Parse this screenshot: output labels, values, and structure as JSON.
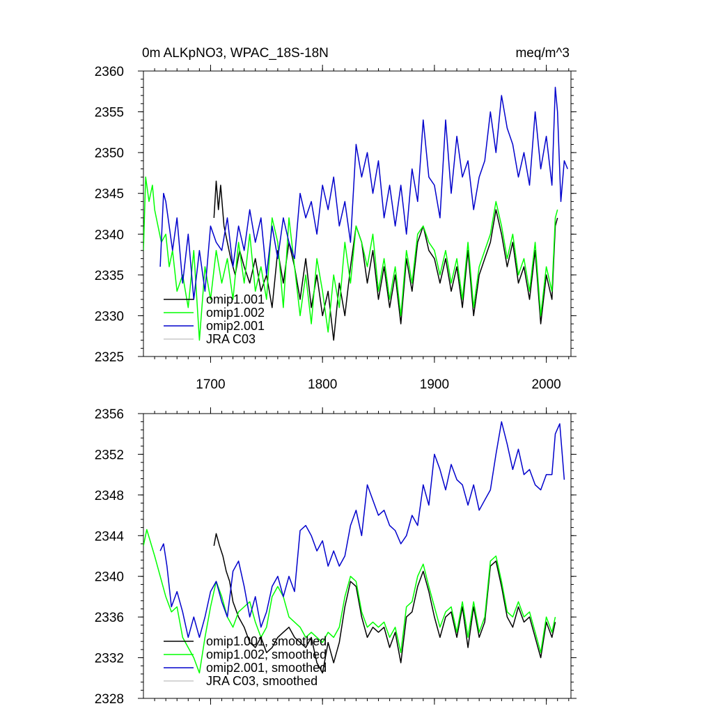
{
  "chart_data": [
    {
      "type": "line",
      "title": "0m ALKpNO3, WPAC_18S-18N",
      "units": "meq/m^3",
      "xlim": [
        1640,
        2022
      ],
      "ylim": [
        2325,
        2360
      ],
      "xticks": [
        1700,
        1800,
        1900,
        2000
      ],
      "xtick_labels": [
        "1700",
        "1800",
        "1900",
        "2000"
      ],
      "yticks": [
        2325,
        2330,
        2335,
        2340,
        2345,
        2350,
        2355,
        2360
      ],
      "ytick_labels": [
        "2325",
        "2330",
        "2335",
        "2340",
        "2345",
        "2350",
        "2355",
        "2360"
      ],
      "legend": {
        "placement": "lower-left",
        "entries": [
          "omip1.001",
          "omip1.002",
          "omip2.001",
          "JRA C03"
        ]
      },
      "series": [
        {
          "name": "omip1.001",
          "color": "#000000",
          "x": [
            1703,
            1705,
            1707,
            1709,
            1712,
            1715,
            1718,
            1722,
            1726,
            1730,
            1735,
            1740,
            1745,
            1750,
            1755,
            1760,
            1765,
            1770,
            1775,
            1780,
            1785,
            1790,
            1795,
            1800,
            1805,
            1810,
            1815,
            1820,
            1825,
            1830,
            1835,
            1840,
            1845,
            1850,
            1855,
            1860,
            1865,
            1870,
            1875,
            1880,
            1885,
            1890,
            1895,
            1900,
            1905,
            1910,
            1915,
            1920,
            1925,
            1930,
            1935,
            1940,
            1945,
            1950,
            1955,
            1960,
            1965,
            1970,
            1975,
            1980,
            1985,
            1990,
            1995,
            2000,
            2005,
            2008,
            2010
          ],
          "values": [
            2342,
            2346.5,
            2343,
            2346,
            2341,
            2339,
            2337,
            2335,
            2338,
            2336,
            2334,
            2337,
            2333,
            2335,
            2331,
            2338,
            2334,
            2339,
            2336,
            2332,
            2337,
            2331,
            2335,
            2330,
            2333,
            2327,
            2334,
            2330,
            2336,
            2341,
            2339,
            2334,
            2338,
            2332,
            2336,
            2331,
            2335,
            2329,
            2337,
            2333,
            2339,
            2341,
            2338,
            2337,
            2334,
            2337,
            2333,
            2336,
            2331,
            2338,
            2330,
            2335,
            2337,
            2339,
            2343,
            2340,
            2336,
            2339,
            2334,
            2336,
            2332,
            2338,
            2329,
            2335,
            2332,
            2341,
            2342
          ]
        },
        {
          "name": "omip1.002",
          "color": "#00ff00",
          "x": [
            1640,
            1642,
            1645,
            1648,
            1650,
            1653,
            1656,
            1660,
            1663,
            1666,
            1670,
            1675,
            1680,
            1685,
            1690,
            1695,
            1700,
            1705,
            1710,
            1715,
            1720,
            1725,
            1730,
            1735,
            1740,
            1745,
            1750,
            1755,
            1760,
            1765,
            1770,
            1775,
            1780,
            1785,
            1790,
            1795,
            1800,
            1805,
            1810,
            1815,
            1820,
            1825,
            1830,
            1835,
            1840,
            1845,
            1850,
            1855,
            1860,
            1865,
            1870,
            1875,
            1880,
            1885,
            1890,
            1895,
            1900,
            1905,
            1910,
            1915,
            1920,
            1925,
            1930,
            1935,
            1940,
            1945,
            1950,
            1955,
            1960,
            1965,
            1970,
            1975,
            1980,
            1985,
            1990,
            1995,
            2000,
            2005,
            2008,
            2010
          ],
          "values": [
            2338,
            2347,
            2344,
            2346,
            2343,
            2341,
            2339,
            2340,
            2336,
            2338,
            2333,
            2335,
            2331,
            2338,
            2327,
            2336,
            2332,
            2338,
            2334,
            2337,
            2332,
            2339,
            2334,
            2340,
            2333,
            2336,
            2332,
            2342,
            2339,
            2331,
            2342,
            2336,
            2330,
            2335,
            2329,
            2337,
            2333,
            2328,
            2335,
            2331,
            2339,
            2334,
            2341,
            2339,
            2336,
            2340,
            2333,
            2337,
            2332,
            2336,
            2330,
            2338,
            2334,
            2340,
            2341,
            2339,
            2338,
            2335,
            2338,
            2334,
            2337,
            2332,
            2339,
            2331,
            2336,
            2338,
            2340,
            2344,
            2341,
            2337,
            2340,
            2335,
            2337,
            2333,
            2339,
            2330,
            2336,
            2333,
            2342,
            2343
          ]
        },
        {
          "name": "omip2.001",
          "color": "#0000cc",
          "x": [
            1655,
            1658,
            1660,
            1663,
            1666,
            1670,
            1675,
            1680,
            1685,
            1690,
            1695,
            1700,
            1705,
            1710,
            1715,
            1720,
            1725,
            1730,
            1735,
            1740,
            1745,
            1750,
            1755,
            1760,
            1765,
            1770,
            1775,
            1780,
            1785,
            1790,
            1795,
            1800,
            1805,
            1810,
            1815,
            1820,
            1825,
            1830,
            1835,
            1840,
            1845,
            1850,
            1855,
            1860,
            1865,
            1870,
            1875,
            1880,
            1885,
            1890,
            1895,
            1900,
            1905,
            1910,
            1915,
            1920,
            1925,
            1930,
            1935,
            1940,
            1945,
            1950,
            1955,
            1960,
            1965,
            1970,
            1975,
            1980,
            1985,
            1990,
            1995,
            2000,
            2005,
            2008,
            2010,
            2013,
            2016,
            2019
          ],
          "values": [
            2336,
            2345,
            2344,
            2341,
            2338,
            2342,
            2334,
            2340,
            2332,
            2338,
            2333,
            2341,
            2339,
            2338,
            2342,
            2336,
            2341,
            2338,
            2343,
            2339,
            2342,
            2335,
            2341,
            2337,
            2342,
            2339,
            2337,
            2345,
            2342,
            2344,
            2340,
            2346,
            2343,
            2347,
            2341,
            2344,
            2339,
            2351,
            2347,
            2350,
            2345,
            2349,
            2342,
            2346,
            2341,
            2346,
            2340,
            2348,
            2344,
            2354,
            2347,
            2346,
            2342,
            2354,
            2345,
            2352,
            2347,
            2349,
            2343,
            2347,
            2349,
            2355,
            2350,
            2357,
            2353,
            2351,
            2347,
            2350,
            2346,
            2355,
            2348,
            2352,
            2346,
            2358,
            2355,
            2344,
            2349,
            2348
          ]
        },
        {
          "name": "JRA C03",
          "color": "#c8c8c8",
          "x": [],
          "values": []
        }
      ]
    },
    {
      "type": "line",
      "title": "",
      "units": "",
      "xlim": [
        1640,
        2022
      ],
      "ylim": [
        2328,
        2356
      ],
      "xticks": [
        1700,
        1800,
        1900,
        2000
      ],
      "xtick_labels": [],
      "yticks": [
        2328,
        2332,
        2336,
        2340,
        2344,
        2348,
        2352,
        2356
      ],
      "ytick_labels": [
        "2328",
        "2332",
        "2336",
        "2340",
        "2344",
        "2348",
        "2352",
        "2356"
      ],
      "legend": {
        "placement": "lower-left",
        "entries": [
          "omip1.001, smoothed",
          "omip1.002, smoothed",
          "omip2.001, smoothed",
          "JRA C03, smoothed"
        ]
      },
      "series": [
        {
          "name": "omip1.001, smoothed",
          "color": "#000000",
          "x": [
            1703,
            1705,
            1708,
            1711,
            1714,
            1717,
            1720,
            1725,
            1730,
            1735,
            1740,
            1745,
            1750,
            1755,
            1760,
            1765,
            1770,
            1775,
            1780,
            1785,
            1790,
            1795,
            1800,
            1805,
            1810,
            1815,
            1820,
            1825,
            1830,
            1835,
            1840,
            1845,
            1850,
            1855,
            1860,
            1865,
            1870,
            1875,
            1880,
            1885,
            1890,
            1895,
            1900,
            1905,
            1910,
            1915,
            1920,
            1925,
            1930,
            1935,
            1940,
            1945,
            1950,
            1955,
            1960,
            1965,
            1970,
            1975,
            1980,
            1985,
            1990,
            1995,
            2000,
            2005,
            2008
          ],
          "values": [
            2343,
            2344.2,
            2343,
            2342,
            2340.5,
            2339.5,
            2337.5,
            2336,
            2335,
            2333.5,
            2333,
            2334,
            2332.5,
            2333,
            2334,
            2334.5,
            2335,
            2334,
            2333.5,
            2333,
            2334,
            2331.5,
            2330.5,
            2333.5,
            2331.5,
            2333.5,
            2337,
            2339.5,
            2339,
            2336,
            2334,
            2335,
            2334.5,
            2335,
            2333,
            2334.5,
            2331.5,
            2336,
            2336.5,
            2339,
            2340.5,
            2338.5,
            2336,
            2334,
            2336,
            2336.5,
            2334,
            2337,
            2333,
            2337,
            2334,
            2335.5,
            2341,
            2341.5,
            2339,
            2336,
            2335,
            2337,
            2335.5,
            2336,
            2334,
            2332,
            2335.5,
            2334,
            2335.5
          ]
        },
        {
          "name": "omip1.002, smoothed",
          "color": "#00ff00",
          "x": [
            1640,
            1643,
            1646,
            1650,
            1655,
            1660,
            1665,
            1670,
            1675,
            1680,
            1685,
            1690,
            1695,
            1700,
            1705,
            1710,
            1715,
            1720,
            1725,
            1730,
            1735,
            1740,
            1745,
            1750,
            1755,
            1760,
            1765,
            1770,
            1775,
            1780,
            1785,
            1790,
            1795,
            1800,
            1805,
            1810,
            1815,
            1820,
            1825,
            1830,
            1835,
            1840,
            1845,
            1850,
            1855,
            1860,
            1865,
            1870,
            1875,
            1880,
            1885,
            1890,
            1895,
            1900,
            1905,
            1910,
            1915,
            1920,
            1925,
            1930,
            1935,
            1940,
            1945,
            1950,
            1955,
            1960,
            1965,
            1970,
            1975,
            1980,
            1985,
            1990,
            1995,
            2000,
            2005,
            2008
          ],
          "values": [
            2343,
            2344.6,
            2343.5,
            2342,
            2340,
            2338,
            2336.5,
            2337,
            2334,
            2333,
            2332,
            2330.5,
            2334,
            2337,
            2339.5,
            2338,
            2336,
            2335,
            2336.5,
            2337,
            2337.5,
            2335.5,
            2334,
            2335,
            2338,
            2339,
            2338,
            2336,
            2335.5,
            2335,
            2334,
            2334.5,
            2334,
            2333.5,
            2334.5,
            2334,
            2335,
            2338,
            2340,
            2339.5,
            2336.5,
            2335,
            2335.5,
            2335,
            2335.5,
            2334,
            2335,
            2332.5,
            2337,
            2337.5,
            2340,
            2341.2,
            2339,
            2337,
            2335,
            2336.5,
            2337,
            2334.5,
            2337.5,
            2334,
            2337.5,
            2334.5,
            2336,
            2341.5,
            2342,
            2339.5,
            2336.5,
            2336,
            2337.5,
            2336,
            2336.5,
            2334.5,
            2332.5,
            2336,
            2334.5,
            2336
          ]
        },
        {
          "name": "omip2.001, smoothed",
          "color": "#0000cc",
          "x": [
            1655,
            1658,
            1661,
            1665,
            1670,
            1675,
            1680,
            1685,
            1690,
            1695,
            1700,
            1705,
            1710,
            1715,
            1720,
            1725,
            1730,
            1735,
            1740,
            1745,
            1750,
            1755,
            1760,
            1765,
            1770,
            1775,
            1780,
            1785,
            1790,
            1795,
            1800,
            1805,
            1810,
            1815,
            1820,
            1825,
            1830,
            1835,
            1840,
            1845,
            1850,
            1855,
            1860,
            1865,
            1870,
            1875,
            1880,
            1885,
            1890,
            1895,
            1900,
            1905,
            1910,
            1915,
            1920,
            1925,
            1930,
            1935,
            1940,
            1945,
            1950,
            1955,
            1960,
            1965,
            1970,
            1975,
            1980,
            1985,
            1990,
            1995,
            2000,
            2005,
            2008,
            2012,
            2016
          ],
          "values": [
            2342.5,
            2343.2,
            2341,
            2337,
            2338.5,
            2336.5,
            2334,
            2336,
            2334,
            2336,
            2338.5,
            2339.5,
            2337.5,
            2336,
            2340.5,
            2341.5,
            2339,
            2336,
            2338,
            2335,
            2336.5,
            2339,
            2340,
            2338,
            2340,
            2338.5,
            2344.5,
            2345,
            2344,
            2342.5,
            2343.5,
            2341,
            2342.5,
            2341,
            2342,
            2345,
            2346.5,
            2344,
            2349,
            2347.5,
            2346,
            2346.5,
            2345,
            2344.5,
            2343.2,
            2344,
            2346,
            2345,
            2349,
            2347,
            2352,
            2350.5,
            2348.5,
            2351,
            2349.5,
            2349,
            2347,
            2349,
            2346.5,
            2347.5,
            2348.5,
            2352,
            2355.2,
            2353,
            2350.5,
            2352.5,
            2350,
            2350.5,
            2349,
            2348.5,
            2350,
            2350,
            2354,
            2355,
            2349.5
          ]
        },
        {
          "name": "JRA C03, smoothed",
          "color": "#c8c8c8",
          "x": [],
          "values": []
        }
      ]
    }
  ]
}
